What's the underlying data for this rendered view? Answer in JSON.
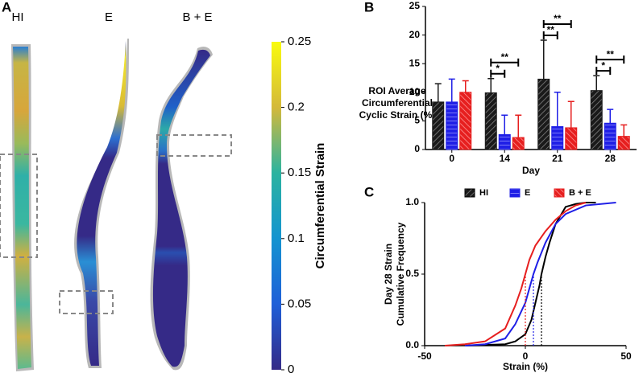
{
  "chart_data": [
    {
      "type": "colormap",
      "panel": "A",
      "labels": [
        "HI",
        "E",
        "B + E"
      ],
      "colorbar_label": "Circumferential Strain",
      "lim": [
        0,
        0.25
      ],
      "ticks": [
        0,
        0.05,
        0.1,
        0.15,
        0.2,
        0.25
      ]
    },
    {
      "type": "bar",
      "panel": "B",
      "ylabel": [
        "ROI Average",
        "Circumferential",
        "Cyclic Strain (%)"
      ],
      "xlabel": "Day",
      "categories": [
        "0",
        "14",
        "21",
        "28"
      ],
      "series": [
        {
          "name": "HI",
          "color": "#1a1a1a",
          "values": [
            8.3,
            9.9,
            12.3,
            10.3
          ],
          "errors": [
            3.2,
            2.5,
            6.8,
            2.6
          ]
        },
        {
          "name": "E",
          "color": "#1f1fe6",
          "values": [
            8.3,
            2.6,
            4.0,
            4.6
          ],
          "errors": [
            4.0,
            3.4,
            6.0,
            2.4
          ]
        },
        {
          "name": "B + E",
          "color": "#e61f1f",
          "values": [
            10.0,
            2.1,
            3.8,
            2.3
          ],
          "errors": [
            2.0,
            3.9,
            4.6,
            2.0
          ]
        }
      ],
      "ylim": [
        0,
        25
      ],
      "yticks": [
        0,
        5,
        10,
        15,
        20,
        25
      ],
      "significance": [
        {
          "category": "14",
          "between": [
            "HI",
            "E"
          ],
          "label": "*"
        },
        {
          "category": "14",
          "between": [
            "HI",
            "B + E"
          ],
          "label": "**"
        },
        {
          "category": "21",
          "between": [
            "HI",
            "E"
          ],
          "label": "**"
        },
        {
          "category": "21",
          "between": [
            "HI",
            "B + E"
          ],
          "label": "**"
        },
        {
          "category": "28",
          "between": [
            "HI",
            "E"
          ],
          "label": "*"
        },
        {
          "category": "28",
          "between": [
            "HI",
            "B + E"
          ],
          "label": "**"
        }
      ]
    },
    {
      "type": "line",
      "panel": "C",
      "ylabel": [
        "Day 28 Strain",
        "Cumulative Frequency"
      ],
      "xlabel": "Strain (%)",
      "xlim": [
        -50,
        50
      ],
      "xticks": [
        -50,
        0,
        50
      ],
      "ylim": [
        0,
        1
      ],
      "yticks": [
        {
          "value": 0,
          "label": "0.0"
        },
        {
          "value": 0.5,
          "label": "0.5"
        },
        {
          "value": 1,
          "label": "1.0"
        }
      ],
      "series": [
        {
          "name": "HI",
          "color": "#000000",
          "median": 8,
          "x": [
            -30,
            -10,
            -5,
            0,
            3,
            5,
            7,
            8,
            10,
            12,
            15,
            20,
            25,
            30,
            35
          ],
          "values": [
            0,
            0.01,
            0.03,
            0.08,
            0.18,
            0.3,
            0.42,
            0.5,
            0.62,
            0.72,
            0.85,
            0.97,
            0.99,
            1,
            1
          ]
        },
        {
          "name": "E",
          "color": "#1f1fe6",
          "median": 4,
          "x": [
            -30,
            -20,
            -10,
            -5,
            0,
            2,
            4,
            6,
            8,
            10,
            15,
            20,
            30,
            45
          ],
          "values": [
            0,
            0.01,
            0.05,
            0.15,
            0.3,
            0.4,
            0.5,
            0.58,
            0.65,
            0.72,
            0.85,
            0.92,
            0.98,
            1
          ]
        },
        {
          "name": "B + E",
          "color": "#e61f1f",
          "median": 0,
          "x": [
            -40,
            -30,
            -20,
            -10,
            -5,
            -2,
            0,
            2,
            5,
            10,
            15,
            20,
            25,
            30
          ],
          "values": [
            0,
            0.01,
            0.03,
            0.12,
            0.28,
            0.4,
            0.5,
            0.6,
            0.7,
            0.8,
            0.88,
            0.94,
            0.98,
            1
          ]
        }
      ]
    }
  ]
}
